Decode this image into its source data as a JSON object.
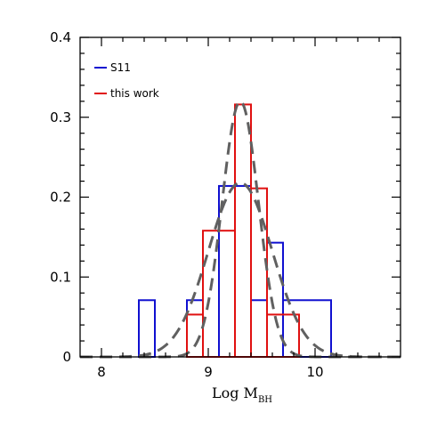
{
  "chart_data": {
    "type": "histogram",
    "xlabel_main": "Log M",
    "xlabel_sub": "BH",
    "ylabel": "",
    "xlim": [
      7.8,
      10.8
    ],
    "ylim": [
      0,
      0.4
    ],
    "x_ticks": [
      8,
      9,
      10
    ],
    "x_tick_labels": [
      "8",
      "9",
      "10"
    ],
    "y_ticks": [
      0,
      0.1,
      0.2,
      0.3,
      0.4
    ],
    "y_tick_labels": [
      "0",
      "0.1",
      "0.2",
      "0.3",
      "0.4"
    ],
    "legend_position": "top-left",
    "series": [
      {
        "name": "S11",
        "color": "#1010d0",
        "style": "solid-step",
        "bins": [
          {
            "x0": 8.35,
            "x1": 8.5,
            "y": 0.071
          },
          {
            "x0": 8.5,
            "x1": 8.8,
            "y": 0.0
          },
          {
            "x0": 8.8,
            "x1": 8.95,
            "y": 0.071
          },
          {
            "x0": 8.95,
            "x1": 9.1,
            "y": 0.0
          },
          {
            "x0": 9.1,
            "x1": 9.4,
            "y": 0.214
          },
          {
            "x0": 9.4,
            "x1": 9.55,
            "y": 0.071
          },
          {
            "x0": 9.55,
            "x1": 9.7,
            "y": 0.143
          },
          {
            "x0": 9.7,
            "x1": 10.15,
            "y": 0.071
          }
        ]
      },
      {
        "name": "this work",
        "color": "#e01010",
        "style": "solid-step",
        "bins": [
          {
            "x0": 8.8,
            "x1": 8.95,
            "y": 0.053
          },
          {
            "x0": 8.95,
            "x1": 9.25,
            "y": 0.158
          },
          {
            "x0": 9.25,
            "x1": 9.4,
            "y": 0.316
          },
          {
            "x0": 9.4,
            "x1": 9.55,
            "y": 0.211
          },
          {
            "x0": 9.55,
            "x1": 9.85,
            "y": 0.053
          }
        ]
      },
      {
        "name": "",
        "color": "#606060",
        "style": "dashed-curve",
        "gaussian": {
          "mean": 9.3,
          "sigma": 0.3,
          "amplitude": 0.218
        }
      },
      {
        "name": "",
        "color": "#606060",
        "style": "dashed-curve",
        "gaussian": {
          "mean": 9.3,
          "sigma": 0.17,
          "amplitude": 0.32
        }
      }
    ]
  }
}
